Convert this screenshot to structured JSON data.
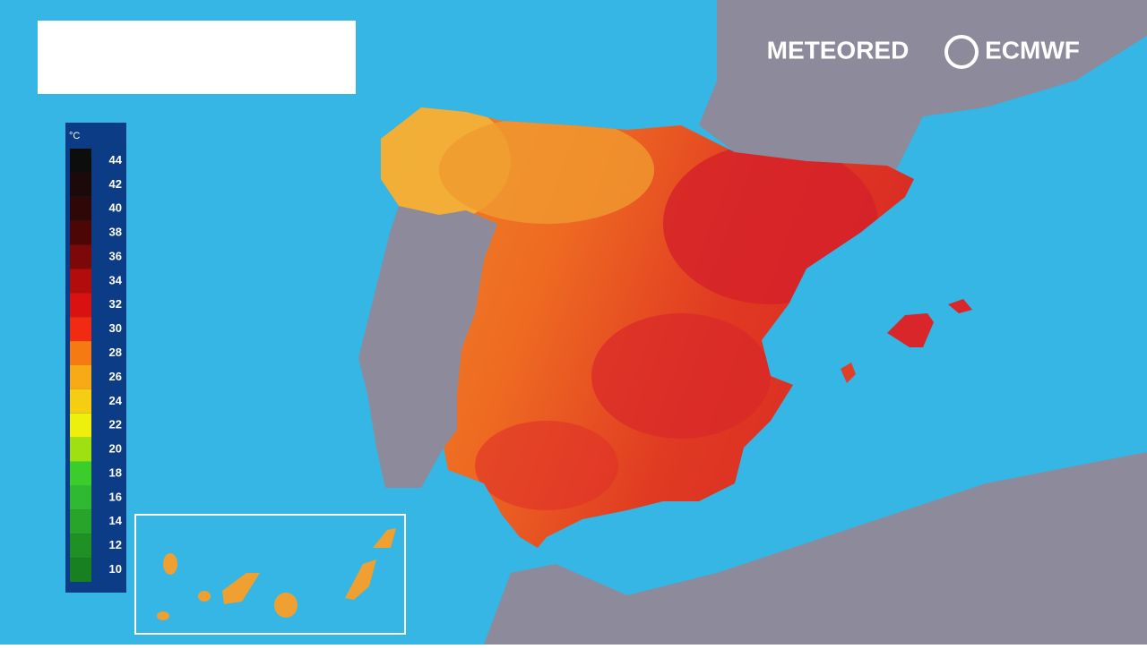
{
  "legend": {
    "unit": "°C",
    "items": [
      {
        "value": 44,
        "color": "#0d0d0d"
      },
      {
        "value": 42,
        "color": "#1c0a0a"
      },
      {
        "value": 40,
        "color": "#2e0707"
      },
      {
        "value": 38,
        "color": "#4d0606"
      },
      {
        "value": 36,
        "color": "#7c0909"
      },
      {
        "value": 34,
        "color": "#b20c0c"
      },
      {
        "value": 32,
        "color": "#d91111"
      },
      {
        "value": 30,
        "color": "#f12b12"
      },
      {
        "value": 28,
        "color": "#f57a12"
      },
      {
        "value": 26,
        "color": "#f8a916"
      },
      {
        "value": 24,
        "color": "#f5cd12"
      },
      {
        "value": 22,
        "color": "#ecf00c"
      },
      {
        "value": 20,
        "color": "#9fe012"
      },
      {
        "value": 18,
        "color": "#3ccc2c"
      },
      {
        "value": 16,
        "color": "#2fb832"
      },
      {
        "value": 14,
        "color": "#29a42a"
      },
      {
        "value": 12,
        "color": "#1f9024"
      },
      {
        "value": 10,
        "color": "#198021"
      }
    ]
  },
  "logos": {
    "meteored": "METEORED",
    "ecmwf": "ECMWF"
  }
}
